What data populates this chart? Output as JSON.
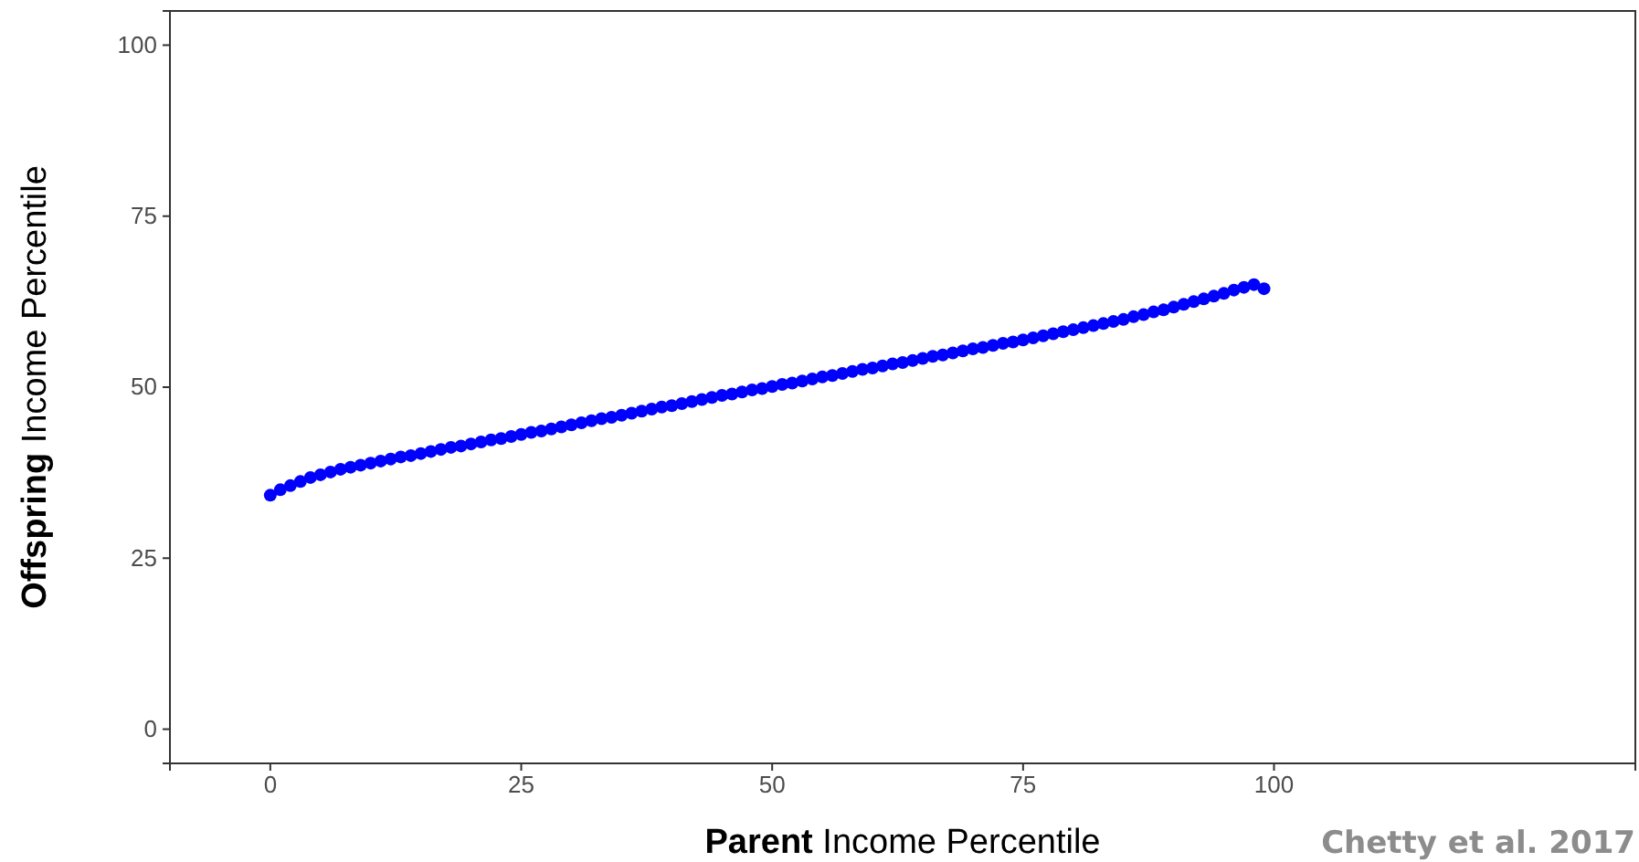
{
  "chart_data": {
    "type": "scatter",
    "xlabel": "Parent Income Percentile",
    "ylabel": "Offspring Income Percentile",
    "annotations": [
      "Chetty et al. 2017"
    ],
    "xlim": [
      -10,
      136
    ],
    "ylim": [
      -5,
      105
    ],
    "xticks": [
      0,
      25,
      50,
      75,
      100
    ],
    "yticks": [
      0,
      25,
      50,
      75,
      100
    ],
    "grid": false,
    "marker": "circle",
    "x": [
      0,
      1,
      2,
      3,
      4,
      5,
      6,
      7,
      8,
      9,
      10,
      11,
      12,
      13,
      14,
      15,
      16,
      17,
      18,
      19,
      20,
      21,
      22,
      23,
      24,
      25,
      26,
      27,
      28,
      29,
      30,
      31,
      32,
      33,
      34,
      35,
      36,
      37,
      38,
      39,
      40,
      41,
      42,
      43,
      44,
      45,
      46,
      47,
      48,
      49,
      50,
      51,
      52,
      53,
      54,
      55,
      56,
      57,
      58,
      59,
      60,
      61,
      62,
      63,
      64,
      65,
      66,
      67,
      68,
      69,
      70,
      71,
      72,
      73,
      74,
      75,
      76,
      77,
      78,
      79,
      80,
      81,
      82,
      83,
      84,
      85,
      86,
      87,
      88,
      89,
      90,
      91,
      92,
      93,
      94,
      95,
      96,
      97,
      98,
      99
    ],
    "series": [
      {
        "color": "#0000ff",
        "values": [
          34.2,
          35.0,
          35.6,
          36.2,
          36.8,
          37.2,
          37.6,
          38.0,
          38.3,
          38.6,
          38.9,
          39.2,
          39.5,
          39.8,
          40.0,
          40.3,
          40.6,
          40.9,
          41.2,
          41.4,
          41.7,
          42.0,
          42.3,
          42.5,
          42.8,
          43.1,
          43.4,
          43.6,
          43.9,
          44.2,
          44.5,
          44.8,
          45.1,
          45.4,
          45.6,
          45.9,
          46.2,
          46.5,
          46.8,
          47.1,
          47.3,
          47.6,
          47.9,
          48.2,
          48.5,
          48.8,
          49.0,
          49.3,
          49.6,
          49.8,
          50.1,
          50.4,
          50.6,
          50.9,
          51.2,
          51.5,
          51.7,
          52.0,
          52.3,
          52.6,
          52.8,
          53.1,
          53.4,
          53.6,
          53.9,
          54.2,
          54.5,
          54.7,
          55.0,
          55.3,
          55.6,
          55.8,
          56.1,
          56.4,
          56.6,
          56.9,
          57.2,
          57.5,
          57.8,
          58.1,
          58.4,
          58.7,
          59.0,
          59.3,
          59.6,
          59.9,
          60.3,
          60.6,
          61.0,
          61.3,
          61.7,
          62.1,
          62.5,
          62.9,
          63.3,
          63.7,
          64.2,
          64.6,
          65.0,
          64.4
        ]
      }
    ]
  }
}
